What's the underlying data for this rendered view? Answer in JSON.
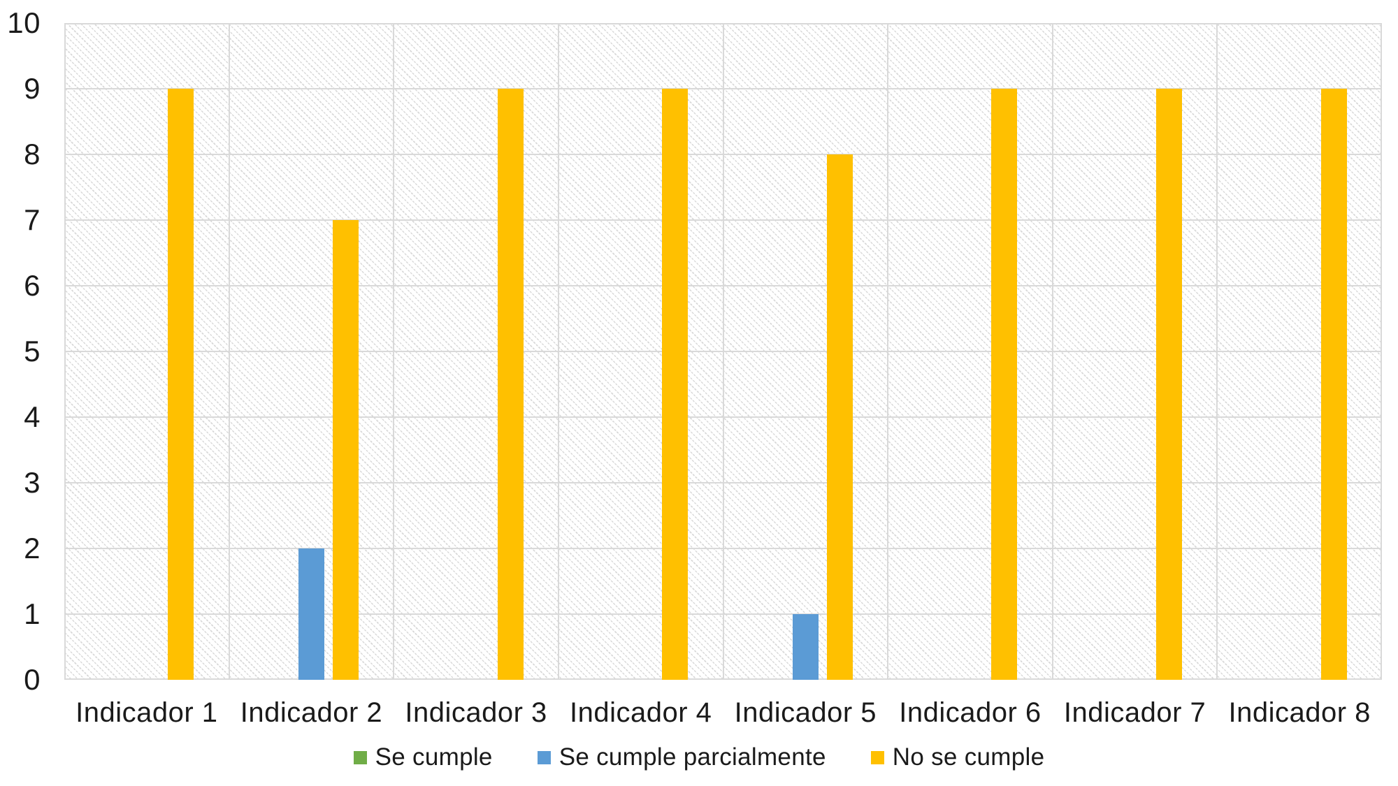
{
  "chart_data": {
    "type": "bar",
    "title": "",
    "xlabel": "",
    "ylabel": "",
    "categories": [
      "Indicador 1",
      "Indicador 2",
      "Indicador 3",
      "Indicador 4",
      "Indicador 5",
      "Indicador 6",
      "Indicador 7",
      "Indicador 8"
    ],
    "series": [
      {
        "name": "Se cumple",
        "color": "#70AD47",
        "values": [
          0,
          0,
          0,
          0,
          0,
          0,
          0,
          0
        ]
      },
      {
        "name": "Se cumple parcialmente",
        "color": "#5B9BD5",
        "values": [
          0,
          2,
          0,
          0,
          1,
          0,
          0,
          0
        ]
      },
      {
        "name": "No se cumple",
        "color": "#FFC000",
        "values": [
          9,
          7,
          9,
          9,
          8,
          9,
          9,
          9
        ]
      }
    ],
    "y_axis": {
      "min": 0,
      "max": 10,
      "step": 1,
      "tick_labels": [
        "0",
        "1",
        "2",
        "3",
        "4",
        "5",
        "6",
        "7",
        "8",
        "9",
        "10"
      ]
    },
    "grid": {
      "horizontal": true,
      "vertical": true,
      "color": "#d9d9d9"
    },
    "plot_background": {
      "pattern": "light-downward-diagonal-hatch",
      "pattern_color": "#d8d8d8"
    },
    "legend_position": "bottom-center",
    "text_color": "#1a1a1a"
  }
}
